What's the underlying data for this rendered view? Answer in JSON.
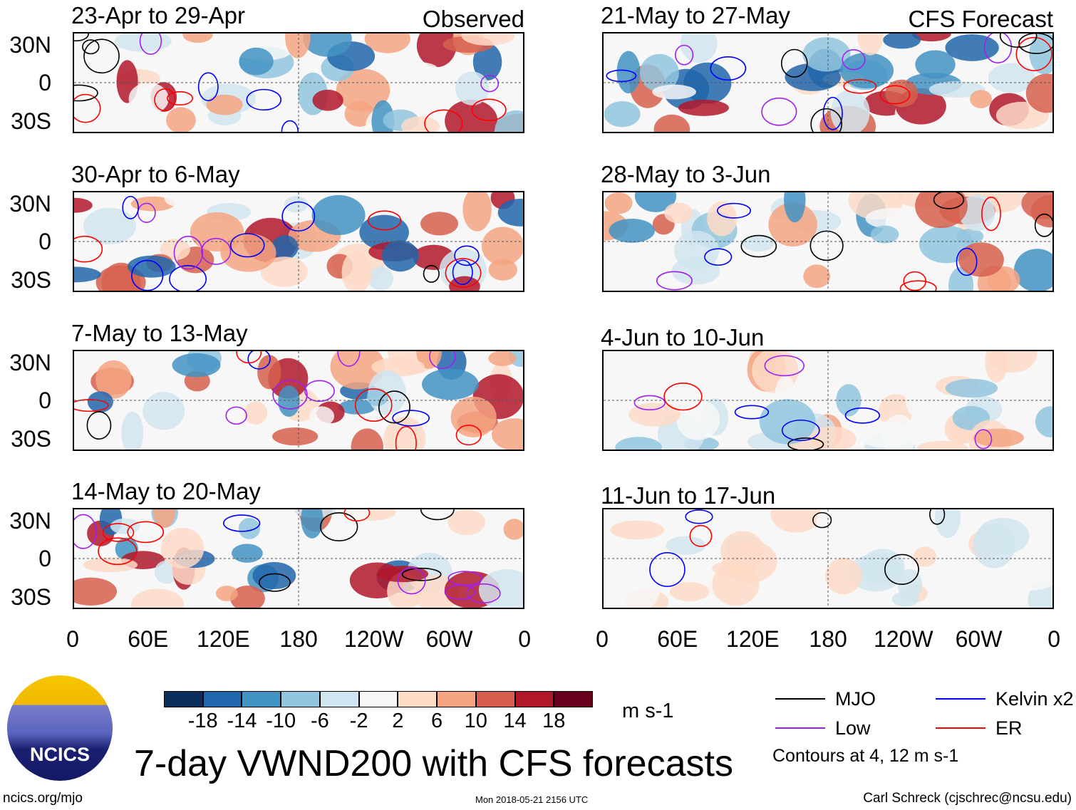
{
  "columns": [
    {
      "header": "Observed",
      "panels": [
        "23-Apr to 29-Apr",
        "30-Apr to 6-May",
        "7-May to 13-May",
        "14-May to 20-May"
      ]
    },
    {
      "header": "CFS Forecast",
      "panels": [
        "21-May to 27-May",
        "28-May to 3-Jun",
        "4-Jun to 10-Jun",
        "11-Jun to 17-Jun"
      ]
    }
  ],
  "lat_labels": [
    "30N",
    "0",
    "30S"
  ],
  "lon_labels": [
    "0",
    "60E",
    "120E",
    "180",
    "120W",
    "60W",
    "0"
  ],
  "colorbar": {
    "colors": [
      "#0c2e5c",
      "#2166ac",
      "#4393c3",
      "#92c5de",
      "#d1e5f0",
      "#f7f7f7",
      "#fddbc7",
      "#f4a582",
      "#d6604d",
      "#b2182b",
      "#67001f"
    ],
    "labels": [
      "-18",
      "-14",
      "-10",
      "-6",
      "-2",
      "2",
      "6",
      "10",
      "14",
      "18"
    ],
    "units": "m s-1"
  },
  "legend": {
    "items": [
      {
        "label": "MJO",
        "color": "#000000"
      },
      {
        "label": "Kelvin x2",
        "color": "#0000ff"
      },
      {
        "label": "Low",
        "color": "#a020f0"
      },
      {
        "label": "ER",
        "color": "#ff0000"
      }
    ],
    "note": "Contours at 4, 12 m s-1"
  },
  "title": "7-day VWND200 with CFS forecasts",
  "logo_text": "NCICS",
  "footer": {
    "left": "ncics.org/mjo",
    "center": "Mon 2018-05-21 2156 UTC",
    "right": "Carl Schreck (cjschrec@ncsu.edu)"
  }
}
